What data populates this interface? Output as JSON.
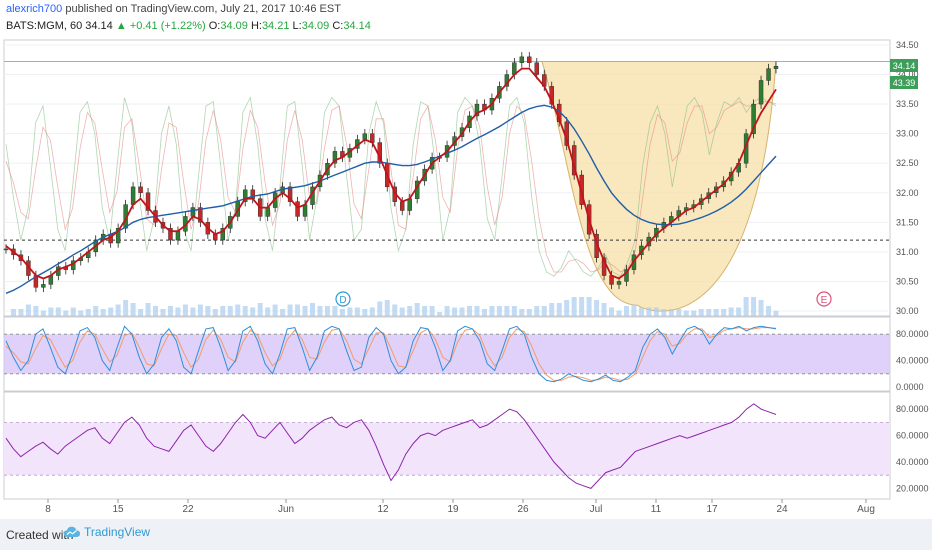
{
  "header": {
    "user": "alexrich700",
    "published": "published on TradingView.com, July 21, 2017 10:46 EST",
    "symbol": "BATS:MGM, 60",
    "price": "34.14",
    "arrow": "▲",
    "change": "+0.41 (+1.22%)",
    "o_label": "O:",
    "o": "34.09",
    "h_label": "H:",
    "h": "34.21",
    "l_label": "L:",
    "l": "34.09",
    "c_label": "C:",
    "c": "34.14"
  },
  "footer": {
    "created_with": "Created with",
    "brand": "TradingView",
    "logo_icon": "tradingview-cloud-icon"
  },
  "colors": {
    "up_candle": "#2e7d32",
    "down_candle": "#c62828",
    "ma_fast": "#c0141c",
    "ma_slow": "#1f5fa8",
    "cup_fill": "#f7dfa8",
    "stoch_band": "#d7c6f7",
    "rsi_band": "#f1e4fb",
    "rsi_line": "#8e24aa",
    "price_badge": "#3d9e5a"
  },
  "chart_data": [
    {
      "type": "candlestick",
      "title": "",
      "y_ticks": [
        "34.50",
        "34.00",
        "33.50",
        "33.00",
        "32.50",
        "32.00",
        "31.50",
        "31.00",
        "30.50",
        "30.00"
      ],
      "ylim": [
        30.0,
        34.5
      ],
      "x_ticks": [
        "8",
        "15",
        "22",
        "Jun",
        "12",
        "19",
        "26",
        "Jul",
        "11",
        "17",
        "24",
        "Aug"
      ],
      "price_label": "34.14",
      "secondary_label": "43.39",
      "support_level": 31.2,
      "event_markers": [
        "D",
        "E"
      ],
      "close_series": [
        31.05,
        30.95,
        30.85,
        30.6,
        30.4,
        30.45,
        30.6,
        30.75,
        30.7,
        30.85,
        30.9,
        31.0,
        31.2,
        31.3,
        31.15,
        31.4,
        31.8,
        32.1,
        32.0,
        31.7,
        31.5,
        31.4,
        31.2,
        31.35,
        31.6,
        31.75,
        31.5,
        31.3,
        31.2,
        31.4,
        31.6,
        31.85,
        32.05,
        31.9,
        31.6,
        31.75,
        32.0,
        32.1,
        31.85,
        31.6,
        31.8,
        32.1,
        32.3,
        32.5,
        32.7,
        32.6,
        32.75,
        32.9,
        33.0,
        32.85,
        32.5,
        32.1,
        31.85,
        31.7,
        31.9,
        32.2,
        32.4,
        32.6,
        32.6,
        32.8,
        32.95,
        33.1,
        33.3,
        33.5,
        33.4,
        33.6,
        33.8,
        34.0,
        34.2,
        34.3,
        34.2,
        34.0,
        33.8,
        33.5,
        33.2,
        32.8,
        32.3,
        31.8,
        31.3,
        30.9,
        30.6,
        30.45,
        30.5,
        30.7,
        30.95,
        31.1,
        31.25,
        31.4,
        31.5,
        31.6,
        31.7,
        31.75,
        31.8,
        31.9,
        32.0,
        32.1,
        32.2,
        32.35,
        32.5,
        33.0,
        33.5,
        33.9,
        34.1,
        34.14
      ],
      "ma_fast": [
        31.1,
        31.0,
        30.9,
        30.75,
        30.6,
        30.55,
        30.6,
        30.7,
        30.75,
        30.8,
        30.9,
        31.0,
        31.1,
        31.2,
        31.25,
        31.35,
        31.55,
        31.8,
        31.9,
        31.75,
        31.6,
        31.45,
        31.35,
        31.35,
        31.45,
        31.6,
        31.55,
        31.4,
        31.3,
        31.35,
        31.5,
        31.7,
        31.9,
        31.9,
        31.75,
        31.75,
        31.9,
        32.0,
        31.9,
        31.75,
        31.8,
        32.0,
        32.2,
        32.4,
        32.55,
        32.6,
        32.7,
        32.8,
        32.9,
        32.85,
        32.6,
        32.3,
        32.0,
        31.85,
        31.9,
        32.1,
        32.3,
        32.5,
        32.6,
        32.7,
        32.85,
        33.0,
        33.2,
        33.35,
        33.4,
        33.5,
        33.7,
        33.85,
        34.0,
        34.1,
        34.1,
        33.95,
        33.8,
        33.55,
        33.25,
        32.9,
        32.45,
        32.0,
        31.55,
        31.15,
        30.85,
        30.6,
        30.55,
        30.65,
        30.85,
        31.0,
        31.15,
        31.3,
        31.4,
        31.5,
        31.6,
        31.7,
        31.75,
        31.85,
        31.95,
        32.05,
        32.15,
        32.3,
        32.5,
        32.8,
        33.1,
        33.35,
        33.55,
        33.75
      ],
      "ma_slow": [
        30.3,
        30.35,
        30.42,
        30.5,
        30.58,
        30.65,
        30.72,
        30.8,
        30.87,
        30.95,
        31.02,
        31.1,
        31.18,
        31.25,
        31.3,
        31.35,
        31.42,
        31.5,
        31.55,
        31.58,
        31.6,
        31.62,
        31.64,
        31.66,
        31.68,
        31.7,
        31.72,
        31.74,
        31.76,
        31.78,
        31.82,
        31.86,
        31.9,
        31.94,
        31.96,
        31.98,
        32.02,
        32.06,
        32.08,
        32.1,
        32.12,
        32.16,
        32.2,
        32.25,
        32.3,
        32.35,
        32.4,
        32.45,
        32.5,
        32.52,
        32.52,
        32.5,
        32.48,
        32.46,
        32.46,
        32.48,
        32.52,
        32.57,
        32.62,
        32.67,
        32.72,
        32.78,
        32.85,
        32.92,
        32.98,
        33.05,
        33.12,
        33.2,
        33.28,
        33.36,
        33.42,
        33.46,
        33.48,
        33.45,
        33.38,
        33.25,
        33.08,
        32.88,
        32.66,
        32.42,
        32.2,
        32.0,
        31.85,
        31.72,
        31.62,
        31.55,
        31.5,
        31.47,
        31.46,
        31.46,
        31.47,
        31.5,
        31.54,
        31.58,
        31.63,
        31.69,
        31.76,
        31.84,
        31.94,
        32.06,
        32.2,
        32.34,
        32.48,
        32.62
      ]
    },
    {
      "type": "line",
      "title": "",
      "y_ticks": [
        "80.0000",
        "40.0000",
        "0.0000"
      ],
      "ylim": [
        0,
        100
      ],
      "band": [
        20,
        80
      ],
      "k_series": [
        70,
        45,
        25,
        40,
        80,
        88,
        60,
        30,
        20,
        50,
        85,
        90,
        75,
        40,
        25,
        60,
        92,
        80,
        45,
        20,
        35,
        75,
        88,
        70,
        30,
        20,
        55,
        88,
        90,
        60,
        25,
        40,
        85,
        92,
        70,
        35,
        20,
        50,
        88,
        90,
        60,
        25,
        45,
        85,
        92,
        88,
        55,
        25,
        30,
        75,
        90,
        80,
        40,
        20,
        30,
        70,
        90,
        88,
        60,
        25,
        40,
        85,
        92,
        88,
        70,
        35,
        25,
        55,
        88,
        92,
        80,
        45,
        20,
        10,
        8,
        12,
        20,
        15,
        10,
        8,
        12,
        18,
        10,
        8,
        15,
        25,
        60,
        80,
        88,
        75,
        50,
        70,
        88,
        92,
        85,
        65,
        80,
        90,
        88,
        92,
        85,
        90,
        92,
        90,
        88
      ],
      "d_series": [
        62,
        52,
        38,
        35,
        58,
        78,
        72,
        50,
        30,
        40,
        68,
        85,
        80,
        58,
        38,
        48,
        78,
        82,
        60,
        35,
        32,
        58,
        80,
        78,
        52,
        30,
        42,
        72,
        86,
        72,
        45,
        38,
        68,
        86,
        78,
        52,
        32,
        42,
        72,
        86,
        72,
        45,
        42,
        68,
        86,
        88,
        70,
        42,
        35,
        58,
        82,
        82,
        58,
        32,
        30,
        55,
        82,
        88,
        72,
        45,
        38,
        68,
        86,
        88,
        78,
        50,
        32,
        45,
        75,
        88,
        84,
        62,
        35,
        18,
        10,
        10,
        15,
        16,
        14,
        10,
        11,
        15,
        13,
        10,
        12,
        20,
        45,
        70,
        84,
        80,
        62,
        66,
        80,
        88,
        88,
        75,
        78,
        86,
        88,
        90,
        88,
        88,
        90,
        90,
        89
      ]
    },
    {
      "type": "line",
      "title": "",
      "y_ticks": [
        "80.0000",
        "60.0000",
        "40.0000",
        "20.0000"
      ],
      "ylim": [
        15,
        90
      ],
      "band": [
        30,
        70
      ],
      "rsi_series": [
        58,
        50,
        44,
        48,
        52,
        55,
        50,
        46,
        52,
        56,
        60,
        64,
        66,
        58,
        54,
        62,
        70,
        74,
        68,
        58,
        52,
        50,
        48,
        56,
        64,
        68,
        60,
        52,
        48,
        54,
        62,
        70,
        76,
        70,
        60,
        58,
        64,
        70,
        62,
        54,
        58,
        64,
        68,
        72,
        74,
        68,
        66,
        70,
        72,
        64,
        52,
        38,
        26,
        34,
        46,
        54,
        60,
        62,
        60,
        64,
        66,
        68,
        70,
        72,
        66,
        68,
        72,
        76,
        80,
        78,
        72,
        64,
        56,
        48,
        40,
        34,
        28,
        24,
        22,
        20,
        26,
        32,
        34,
        36,
        42,
        48,
        50,
        52,
        54,
        56,
        58,
        60,
        58,
        60,
        62,
        64,
        66,
        68,
        70,
        74,
        80,
        84,
        80,
        78,
        76
      ]
    }
  ]
}
